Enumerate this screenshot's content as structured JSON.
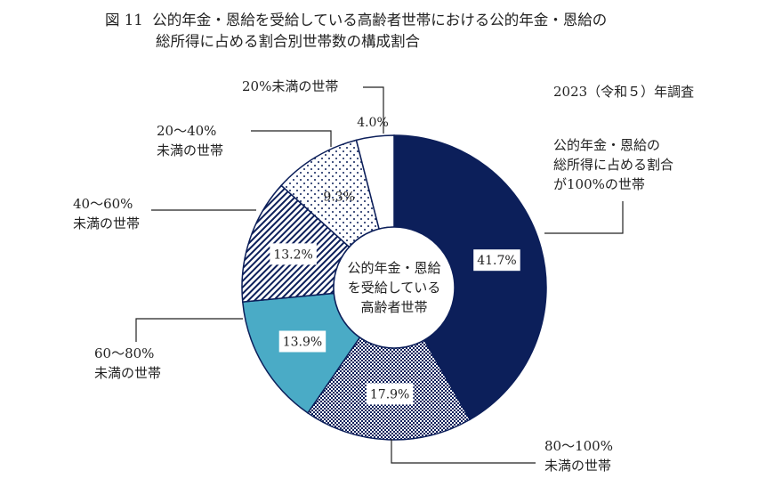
{
  "title": {
    "figure_no": "図 11",
    "line1": "公的年金・恩給を受給している高齢者世帯における公的年金・恩給の",
    "line2": "総所得に占める割合別世帯数の構成割合"
  },
  "note": "2023（令和５）年調査",
  "chart_data": {
    "type": "pie",
    "variant": "donut",
    "title": "図 11 公的年金・恩給を受給している高齢者世帯における公的年金・恩給の総所得に占める割合別世帯数の構成割合",
    "center_label": [
      "公的年金・恩給",
      "を受給している",
      "高齢者世帯"
    ],
    "start": "12 o'clock, clockwise",
    "slices": [
      {
        "label": [
          "公的年金・恩給の",
          "総所得に占める割合",
          "が100%の世帯"
        ],
        "value": 41.7,
        "display": "41.7%",
        "color": "#0c1f5a",
        "pattern": "solid"
      },
      {
        "label": [
          "80～100%",
          "未満の世帯"
        ],
        "value": 17.9,
        "display": "17.9%",
        "color": "#0c1f5a",
        "pattern": "checker"
      },
      {
        "label": [
          "60～80%",
          "未満の世帯"
        ],
        "value": 13.9,
        "display": "13.9%",
        "color": "#4aabc6",
        "pattern": "solid"
      },
      {
        "label": [
          "40～60%",
          "未満の世帯"
        ],
        "value": 13.2,
        "display": "13.2%",
        "color": "#0c1f5a",
        "pattern": "diagonal-stripes"
      },
      {
        "label": [
          "20～40%",
          "未満の世帯"
        ],
        "value": 9.3,
        "display": "9.3%",
        "color": "#0c1f5a",
        "pattern": "dots"
      },
      {
        "label": [
          "20%未満の世帯"
        ],
        "value": 4.0,
        "display": "4.0%",
        "color": "#ffffff",
        "pattern": "solid"
      }
    ]
  }
}
